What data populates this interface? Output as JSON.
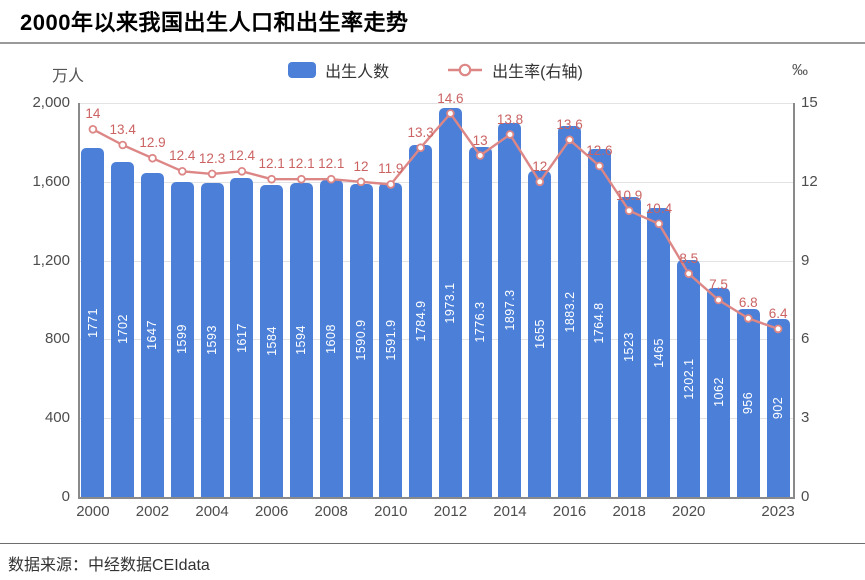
{
  "header": {
    "title": "2000年以来我国出生人口和出生率走势"
  },
  "chart": {
    "left_axis_unit": "万人",
    "right_axis_unit": "‰",
    "legend": [
      {
        "label": "出生人数",
        "type": "bar"
      },
      {
        "label": "出生率(右轴)",
        "type": "line"
      }
    ]
  },
  "footer": {
    "source": "数据来源：中经数据CEIdata"
  },
  "chart_data": {
    "type": "bar",
    "subtype": "bar+line combo, dual axis",
    "title": "2000年以来我国出生人口和出生率走势",
    "categories": [
      2000,
      2001,
      2002,
      2003,
      2004,
      2005,
      2006,
      2007,
      2008,
      2009,
      2010,
      2011,
      2012,
      2013,
      2014,
      2015,
      2016,
      2017,
      2018,
      2019,
      2020,
      2021,
      2022,
      2023
    ],
    "series": [
      {
        "name": "出生人数",
        "type": "bar",
        "axis": "left",
        "unit": "万人",
        "values": [
          1771,
          1702,
          1647,
          1599,
          1593,
          1617,
          1584,
          1594,
          1608,
          1590.9,
          1591.9,
          1784.9,
          1973.1,
          1776.3,
          1897.3,
          1655,
          1883.2,
          1764.8,
          1523,
          1465,
          1202.1,
          1062,
          956,
          902
        ]
      },
      {
        "name": "出生率(右轴)",
        "type": "line",
        "axis": "right",
        "unit": "‰",
        "values": [
          14,
          13.4,
          12.9,
          12.4,
          12.3,
          12.4,
          12.1,
          12.1,
          12.1,
          12,
          11.9,
          13.3,
          14.6,
          13,
          13.8,
          12,
          13.6,
          12.6,
          10.9,
          10.4,
          8.5,
          7.5,
          6.8,
          6.4
        ]
      }
    ],
    "left_axis": {
      "unit": "万人",
      "range": [
        0,
        2000
      ],
      "tick_values": [
        2000,
        1600,
        1200,
        800,
        400,
        0
      ],
      "tick_labels": [
        "2,000",
        "1,600",
        "1,200",
        "800",
        "400",
        "0"
      ]
    },
    "right_axis": {
      "unit": "‰",
      "range": [
        0,
        15
      ],
      "tick_values": [
        15,
        12,
        9,
        6,
        3,
        0
      ],
      "tick_labels": [
        "15",
        "12",
        "9",
        "6",
        "3",
        "0"
      ]
    },
    "x_tick_years": [
      2000,
      2002,
      2004,
      2006,
      2008,
      2010,
      2012,
      2014,
      2016,
      2018,
      2020,
      2023
    ],
    "grid": true,
    "legend_position": "top-center",
    "colors": {
      "bar": "#4c80d8",
      "bar_label": "#ffffff",
      "line": "#dd8686",
      "line_marker_fill": "#ffffff",
      "line_label": "#cb6363",
      "grid": "#e3e3e3",
      "axis": "#8a8a8a"
    }
  }
}
